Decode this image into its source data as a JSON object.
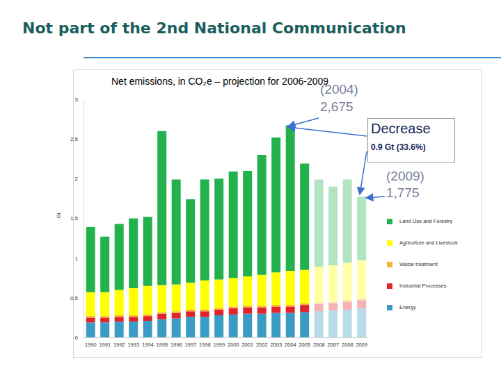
{
  "header": "Not part of the 2nd National Communication",
  "chart_data": {
    "type": "bar",
    "stacked": true,
    "title": "Net emissions, in CO₂e – projection for 2006-2009",
    "ylabel": "Gt",
    "categories": [
      "1990",
      "1991",
      "1992",
      "1993",
      "1994",
      "1995",
      "1996",
      "1997",
      "1998",
      "1999",
      "2000",
      "2001",
      "2002",
      "2003",
      "2004",
      "2005",
      "2006",
      "2007",
      "2008",
      "2009"
    ],
    "series": [
      {
        "name": "Energy",
        "color": "#3a9cc4",
        "values": [
          0.19,
          0.19,
          0.2,
          0.2,
          0.21,
          0.23,
          0.24,
          0.26,
          0.26,
          0.28,
          0.29,
          0.3,
          0.3,
          0.31,
          0.31,
          0.32,
          0.33,
          0.34,
          0.35,
          0.37
        ]
      },
      {
        "name": "Industrial Processes",
        "color": "#e0242a",
        "values": [
          0.06,
          0.06,
          0.06,
          0.06,
          0.06,
          0.07,
          0.07,
          0.07,
          0.07,
          0.07,
          0.08,
          0.08,
          0.08,
          0.08,
          0.08,
          0.09,
          0.09,
          0.09,
          0.1,
          0.1
        ]
      },
      {
        "name": "Waste treatment",
        "color": "#f5b335",
        "values": [
          0.02,
          0.02,
          0.02,
          0.02,
          0.02,
          0.02,
          0.02,
          0.02,
          0.02,
          0.02,
          0.02,
          0.02,
          0.02,
          0.02,
          0.02,
          0.02,
          0.02,
          0.02,
          0.02,
          0.02
        ]
      },
      {
        "name": "Agriculture and Livestock",
        "color": "#ffff00",
        "values": [
          0.3,
          0.3,
          0.32,
          0.34,
          0.36,
          0.34,
          0.34,
          0.34,
          0.37,
          0.36,
          0.36,
          0.37,
          0.39,
          0.41,
          0.43,
          0.42,
          0.45,
          0.46,
          0.47,
          0.48
        ]
      },
      {
        "name": "Land Use and Forestry",
        "color": "#22b14c",
        "values": [
          0.82,
          0.7,
          0.83,
          0.88,
          0.87,
          1.94,
          1.32,
          1.05,
          1.27,
          1.27,
          1.34,
          1.33,
          1.51,
          1.7,
          1.835,
          1.34,
          1.1,
          0.99,
          1.05,
          0.805
        ]
      }
    ],
    "ylim": [
      0,
      3
    ],
    "yticks": [
      0,
      {
        "value": 0.5,
        "label": "0,5"
      },
      1,
      {
        "value": 1.5,
        "label": "1,5"
      },
      2,
      {
        "value": 2.5,
        "label": "2,5"
      },
      3
    ],
    "legend": "right",
    "annotations": [
      "(2004)",
      "2,675",
      "Decrease",
      "0.9 Gt (33.6%)",
      "(2009)",
      "1,775"
    ]
  }
}
